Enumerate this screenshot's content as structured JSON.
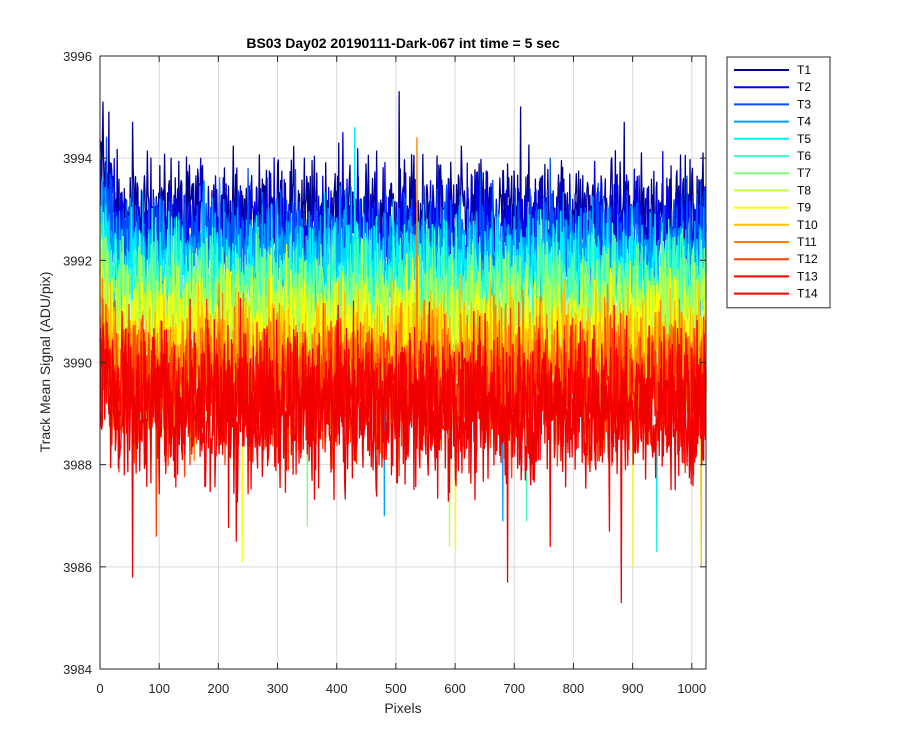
{
  "chart_data": {
    "type": "line",
    "title": "BS03 Day02 20190111-Dark-067 int time = 5 sec",
    "xlabel": "Pixels",
    "ylabel": "Track Mean Signal (ADU/pix)",
    "xlim": [
      0,
      1024
    ],
    "ylim": [
      3984,
      3996
    ],
    "xticks": [
      "0",
      "100",
      "200",
      "300",
      "400",
      "500",
      "600",
      "700",
      "800",
      "900",
      "1000"
    ],
    "yticks": [
      "3984",
      "3986",
      "3988",
      "3990",
      "3992",
      "3994",
      "3996"
    ],
    "grid": true,
    "legend_position": "outside-right-top",
    "n_points": 1024,
    "series": [
      {
        "name": "T1",
        "color": "#00008F",
        "mean": 3992.9,
        "noise": 0.55,
        "spikes": [
          [
            5,
            3995.1
          ],
          [
            15,
            3994.9
          ],
          [
            55,
            3994.7
          ],
          [
            120,
            3994.0
          ],
          [
            300,
            3993.9
          ],
          [
            505,
            3995.3
          ],
          [
            710,
            3995.0
          ],
          [
            885,
            3994.7
          ],
          [
            1018,
            3994.1
          ]
        ]
      },
      {
        "name": "T2",
        "color": "#0000EF",
        "mean": 3992.6,
        "noise": 0.55,
        "spikes": [
          [
            410,
            3994.5
          ],
          [
            170,
            3994.0
          ],
          [
            620,
            3993.9
          ]
        ]
      },
      {
        "name": "T3",
        "color": "#0050FF",
        "mean": 3992.3,
        "noise": 0.55,
        "spikes": [
          [
            250,
            3993.8
          ],
          [
            760,
            3994.0
          ]
        ]
      },
      {
        "name": "T4",
        "color": "#00A0FF",
        "mean": 3992.0,
        "noise": 0.55,
        "spikes": [
          [
            480,
            3987.0
          ],
          [
            680,
            3986.9
          ]
        ]
      },
      {
        "name": "T5",
        "color": "#00EFFF",
        "mean": 3991.7,
        "noise": 0.6,
        "spikes": [
          [
            430,
            3994.6
          ],
          [
            940,
            3986.3
          ]
        ]
      },
      {
        "name": "T6",
        "color": "#40FFBF",
        "mean": 3991.4,
        "noise": 0.6,
        "spikes": [
          [
            720,
            3986.9
          ]
        ]
      },
      {
        "name": "T7",
        "color": "#7FFF80",
        "mean": 3991.1,
        "noise": 0.6,
        "spikes": [
          [
            350,
            3986.8
          ]
        ]
      },
      {
        "name": "T8",
        "color": "#BFFF40",
        "mean": 3990.8,
        "noise": 0.6,
        "spikes": [
          [
            590,
            3986.4
          ]
        ]
      },
      {
        "name": "T9",
        "color": "#FFFF00",
        "mean": 3990.4,
        "noise": 0.65,
        "spikes": [
          [
            900,
            3986.0
          ],
          [
            240,
            3986.1
          ],
          [
            600,
            3986.3
          ]
        ]
      },
      {
        "name": "T10",
        "color": "#FFBF00",
        "mean": 3990.1,
        "noise": 0.65,
        "spikes": [
          [
            1015,
            3986.0
          ]
        ]
      },
      {
        "name": "T11",
        "color": "#FF8000",
        "mean": 3989.8,
        "noise": 0.65,
        "spikes": [
          [
            535,
            3994.4
          ]
        ]
      },
      {
        "name": "T12",
        "color": "#FF4000",
        "mean": 3989.5,
        "noise": 0.7,
        "spikes": [
          [
            95,
            3986.6
          ]
        ]
      },
      {
        "name": "T13",
        "color": "#FF0000",
        "mean": 3989.3,
        "noise": 0.7,
        "spikes": [
          [
            860,
            3986.7
          ]
        ]
      },
      {
        "name": "T14",
        "color": "#EF0000",
        "mean": 3989.0,
        "noise": 0.75,
        "spikes": [
          [
            55,
            3985.8
          ],
          [
            688,
            3985.7
          ],
          [
            880,
            3985.3
          ],
          [
            230,
            3986.5
          ],
          [
            760,
            3986.4
          ]
        ]
      }
    ]
  }
}
